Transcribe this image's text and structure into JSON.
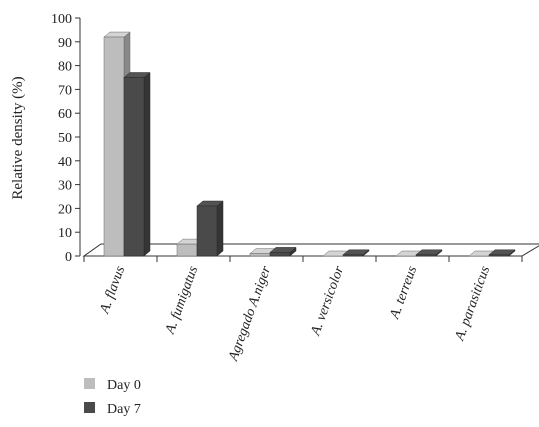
{
  "chart_data": {
    "type": "bar",
    "title": "",
    "xlabel": "",
    "ylabel": "Relative density (%)",
    "ylim": [
      0,
      100
    ],
    "yticks": [
      0,
      10,
      20,
      30,
      40,
      50,
      60,
      70,
      80,
      90,
      100
    ],
    "categories": [
      "A. flavus",
      "A. fumigatus",
      "Agregado A.niger",
      "A. versicolor",
      "A. terreus",
      "A. parasiticus"
    ],
    "series": [
      {
        "name": "Day 0",
        "color": "#bdbdbd",
        "values": [
          92,
          5,
          1,
          0,
          0,
          0
        ]
      },
      {
        "name": "Day 7",
        "color": "#4a4a4a",
        "values": [
          75,
          21,
          1.5,
          0.5,
          0.5,
          0.5
        ]
      }
    ],
    "grid": false,
    "legend_position": "bottom-left",
    "style": "3d"
  }
}
